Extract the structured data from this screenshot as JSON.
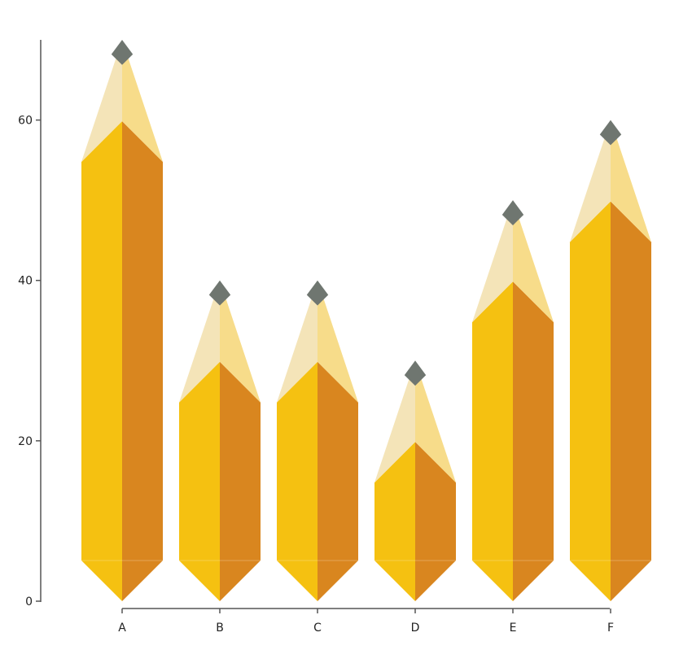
{
  "chart_data": {
    "type": "bar",
    "bar_style": "pencil",
    "categories": [
      "A",
      "B",
      "C",
      "D",
      "E",
      "F"
    ],
    "values": [
      70,
      40,
      40,
      30,
      50,
      60
    ],
    "ylim": [
      0,
      70
    ],
    "yticks": [
      0,
      20,
      40,
      60
    ],
    "grid": false,
    "legend": "none",
    "colors": {
      "body_left": "#F5C111",
      "body_right": "#D9861F",
      "wood_left": "#F4E4B8",
      "wood_right": "#F7DC8A",
      "lead": "#6F7670",
      "axis": "#555555"
    }
  }
}
